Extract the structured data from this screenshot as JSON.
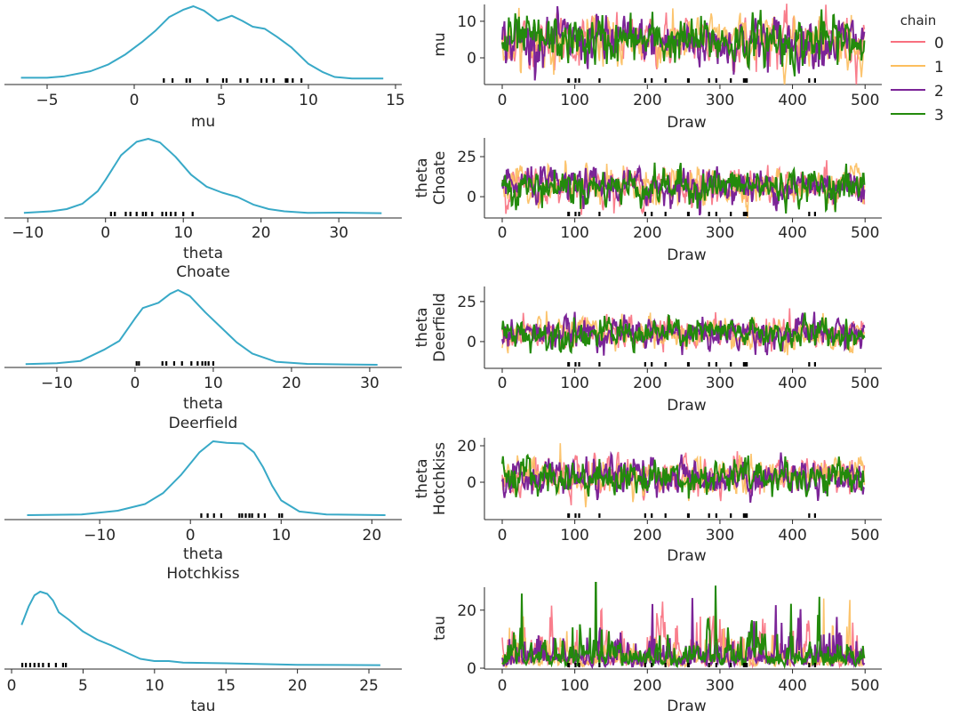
{
  "chart_data": {
    "type": "line",
    "description_kind": "trace plot",
    "legend": {
      "title": "chain",
      "placement": "right",
      "entries": [
        "0",
        "1",
        "2",
        "3"
      ]
    },
    "colors": {
      "kde": "#38a9c7",
      "chains": [
        "#f8707f",
        "#fcbe5e",
        "#7b2497",
        "#238a0c"
      ],
      "divergence": "#000000"
    },
    "draw_axis": {
      "label": "Draw",
      "xlim": [
        -24.5,
        523
      ],
      "ticks": [
        0,
        100,
        200,
        300,
        400,
        500
      ]
    },
    "divergence_draws": [
      91,
      92,
      101,
      106,
      134,
      197,
      206,
      225,
      256,
      257,
      285,
      295,
      315,
      333,
      334,
      336,
      337,
      423,
      431
    ],
    "variables": [
      {
        "label": [
          "mu"
        ],
        "kde_xlim": [
          -7.45,
          15.36
        ],
        "kde_ticks": [
          -5,
          0,
          5,
          10,
          15
        ],
        "kde": [
          [
            -6.5,
            0.02
          ],
          [
            -5,
            0.02
          ],
          [
            -4,
            0.04
          ],
          [
            -2.5,
            0.11
          ],
          [
            -1.5,
            0.2
          ],
          [
            -0.5,
            0.34
          ],
          [
            0.5,
            0.52
          ],
          [
            1.2,
            0.66
          ],
          [
            2,
            0.85
          ],
          [
            2.8,
            0.95
          ],
          [
            3.4,
            1
          ],
          [
            4,
            0.94
          ],
          [
            4.8,
            0.8
          ],
          [
            5.6,
            0.87
          ],
          [
            6.2,
            0.8
          ],
          [
            6.8,
            0.72
          ],
          [
            7.5,
            0.69
          ],
          [
            8.2,
            0.58
          ],
          [
            9,
            0.44
          ],
          [
            10,
            0.21
          ],
          [
            10.8,
            0.1
          ],
          [
            11.5,
            0.03
          ],
          [
            12.5,
            0.01
          ],
          [
            14.3,
            0.01
          ]
        ],
        "divergence_values": [
          1.7,
          2.2,
          3.0,
          3.2,
          4.2,
          5.1,
          5.3,
          6.1,
          6.5,
          7.3,
          7.6,
          8.0,
          8.7,
          8.8,
          9.1,
          9.6
        ],
        "trace_ylim": [
          -7.3,
          14.6
        ],
        "trace_yticks": [
          0,
          10
        ],
        "trace_center": 4.5,
        "trace_spread": 3.3,
        "trace_scale": "linear"
      },
      {
        "label": [
          "theta",
          "Choate"
        ],
        "kde_xlim": [
          -13.0,
          38.1
        ],
        "kde_ticks": [
          -10,
          0,
          10,
          20,
          30
        ],
        "kde": [
          [
            -10.5,
            0.01
          ],
          [
            -7,
            0.03
          ],
          [
            -5,
            0.06
          ],
          [
            -3,
            0.13
          ],
          [
            -1,
            0.3
          ],
          [
            0,
            0.45
          ],
          [
            2,
            0.78
          ],
          [
            4,
            0.96
          ],
          [
            5.5,
            1
          ],
          [
            7,
            0.95
          ],
          [
            9,
            0.76
          ],
          [
            11,
            0.52
          ],
          [
            13,
            0.36
          ],
          [
            15,
            0.28
          ],
          [
            17,
            0.22
          ],
          [
            19,
            0.12
          ],
          [
            21,
            0.06
          ],
          [
            23,
            0.03
          ],
          [
            26,
            0.01
          ],
          [
            30,
            0.012
          ],
          [
            35.5,
            0.005
          ]
        ],
        "divergence_values": [
          0.7,
          1.2,
          2.6,
          3.2,
          4.0,
          4.8,
          5.2,
          6.0,
          7.3,
          7.8,
          8.4,
          9.0,
          10.0,
          11.2
        ],
        "trace_ylim": [
          -13.3,
          36.7
        ],
        "trace_yticks": [
          0,
          25
        ],
        "trace_center": 6.5,
        "trace_spread": 5.5,
        "trace_scale": "linear"
      },
      {
        "label": [
          "theta",
          "Deerfield"
        ],
        "kde_xlim": [
          -16.7,
          34.1
        ],
        "kde_ticks": [
          -10,
          0,
          10,
          20,
          30
        ],
        "kde": [
          [
            -14,
            0.01
          ],
          [
            -10,
            0.02
          ],
          [
            -7,
            0.05
          ],
          [
            -4,
            0.2
          ],
          [
            -2,
            0.32
          ],
          [
            0,
            0.62
          ],
          [
            1,
            0.76
          ],
          [
            3,
            0.83
          ],
          [
            4.5,
            0.95
          ],
          [
            5.5,
            1
          ],
          [
            7,
            0.92
          ],
          [
            9,
            0.7
          ],
          [
            11,
            0.5
          ],
          [
            13,
            0.3
          ],
          [
            15,
            0.15
          ],
          [
            18,
            0.04
          ],
          [
            22,
            0.012
          ],
          [
            27,
            0.005
          ],
          [
            31,
            0.0
          ]
        ],
        "divergence_values": [
          0.2,
          0.5,
          3.5,
          4.0,
          5.0,
          6.0,
          7.2,
          8.0,
          8.6,
          9.0,
          9.4,
          10.0
        ],
        "trace_ylim": [
          -16.7,
          34.4
        ],
        "trace_yticks": [
          0,
          25
        ],
        "trace_center": 5,
        "trace_spread": 4.8,
        "trace_scale": "linear"
      },
      {
        "label": [
          "theta",
          "Hotchkiss"
        ],
        "kde_xlim": [
          -20.5,
          23.3
        ],
        "kde_ticks": [
          -10,
          0,
          10,
          20
        ],
        "kde": [
          [
            -18,
            0.0
          ],
          [
            -12,
            0.01
          ],
          [
            -8,
            0.06
          ],
          [
            -5,
            0.15
          ],
          [
            -3,
            0.3
          ],
          [
            -1,
            0.55
          ],
          [
            1,
            0.85
          ],
          [
            2.5,
            1
          ],
          [
            4,
            0.98
          ],
          [
            5.8,
            0.97
          ],
          [
            7,
            0.85
          ],
          [
            8,
            0.65
          ],
          [
            9,
            0.4
          ],
          [
            10,
            0.2
          ],
          [
            12,
            0.05
          ],
          [
            15,
            0.01
          ],
          [
            21.5,
            0.0
          ]
        ],
        "divergence_values": [
          1.2,
          1.9,
          2.6,
          3.4,
          5.4,
          5.7,
          6.1,
          6.5,
          6.8,
          7.5,
          8.2,
          9.8,
          10.1
        ],
        "trace_ylim": [
          -20.5,
          24.4
        ],
        "trace_yticks": [
          0,
          20
        ],
        "trace_center": 3,
        "trace_spread": 4.8,
        "trace_scale": "linear"
      },
      {
        "label": [
          "tau"
        ],
        "kde_xlim": [
          -0.5,
          27.3
        ],
        "kde_ticks": [
          0,
          5,
          10,
          15,
          20,
          25
        ],
        "kde": [
          [
            0.7,
            0.55
          ],
          [
            1.2,
            0.8
          ],
          [
            1.6,
            0.95
          ],
          [
            2,
            1
          ],
          [
            2.5,
            0.97
          ],
          [
            2.9,
            0.88
          ],
          [
            3.3,
            0.72
          ],
          [
            4,
            0.62
          ],
          [
            5,
            0.46
          ],
          [
            6,
            0.35
          ],
          [
            7,
            0.27
          ],
          [
            8,
            0.18
          ],
          [
            9,
            0.09
          ],
          [
            10,
            0.06
          ],
          [
            11,
            0.06
          ],
          [
            12,
            0.04
          ],
          [
            15,
            0.03
          ],
          [
            20,
            0.01
          ],
          [
            25.8,
            0.005
          ]
        ],
        "divergence_values": [
          0.75,
          1.0,
          1.3,
          1.6,
          1.9,
          2.2,
          2.6,
          3.1,
          3.6,
          3.8
        ],
        "trace_ylim": [
          -0.3,
          27.9
        ],
        "trace_yticks": [
          0,
          20
        ],
        "trace_center": 1.3,
        "trace_spread": 0.7,
        "trace_scale": "log"
      }
    ]
  }
}
